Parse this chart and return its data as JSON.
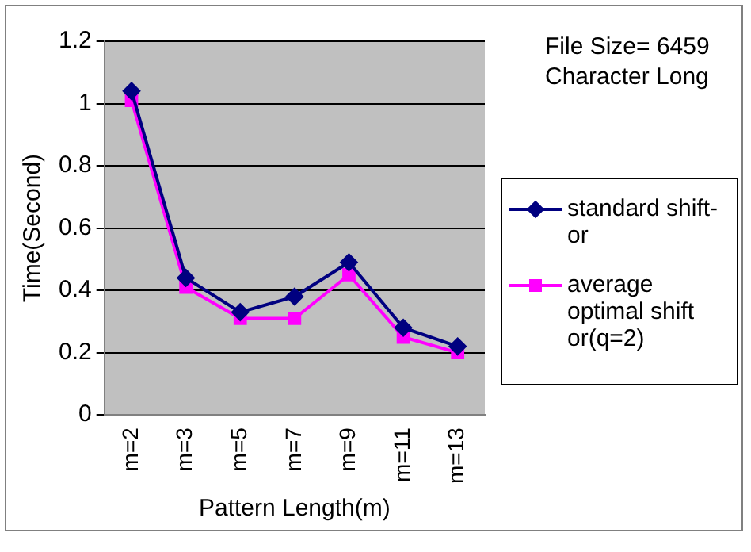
{
  "chart_data": {
    "type": "line",
    "xlabel": "Pattern Length(m)",
    "ylabel": "Time(Second)",
    "categories": [
      "m=2",
      "m=3",
      "m=5",
      "m=7",
      "m=9",
      "m=11",
      "m=13"
    ],
    "series": [
      {
        "name": "standard shift-or",
        "color": "#000080",
        "marker": "diamond",
        "values": [
          1.04,
          0.44,
          0.33,
          0.38,
          0.49,
          0.28,
          0.22
        ]
      },
      {
        "name": "average optimal shift or(q=2)",
        "color": "#ff00ff",
        "marker": "square",
        "values": [
          1.01,
          0.41,
          0.31,
          0.31,
          0.45,
          0.25,
          0.2
        ]
      }
    ],
    "ylim": [
      0,
      1.2
    ],
    "yticks": [
      0,
      0.2,
      0.4,
      0.6,
      0.8,
      1,
      1.2
    ],
    "grid": "y",
    "legend": "right",
    "annotations": [
      "File Size= 6459 Character Long"
    ]
  }
}
